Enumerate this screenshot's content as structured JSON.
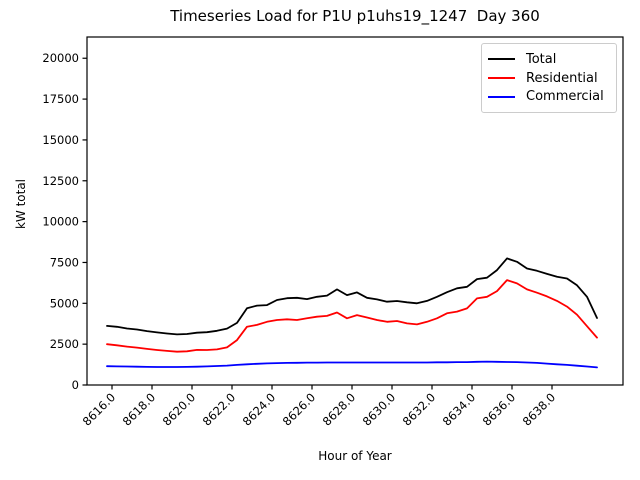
{
  "chart_data": {
    "type": "line",
    "title": "Timeseries Load for P1U p1uhs19_1247  Day 360",
    "xlabel": "Hour of Year",
    "ylabel": "kW total",
    "xlim": [
      8614.75,
      8641.55
    ],
    "ylim": [
      0,
      21300
    ],
    "grid": false,
    "background": "#ffffff",
    "xticks": [
      8616,
      8618,
      8620,
      8622,
      8624,
      8626,
      8628,
      8630,
      8632,
      8634,
      8636,
      8638
    ],
    "xtick_labels": [
      "8616.0",
      "8618.0",
      "8620.0",
      "8622.0",
      "8624.0",
      "8626.0",
      "8628.0",
      "8630.0",
      "8632.0",
      "8634.0",
      "8636.0",
      "8638.0"
    ],
    "yticks": [
      0,
      2500,
      5000,
      7500,
      10000,
      12500,
      15000,
      17500,
      20000
    ],
    "ytick_labels": [
      "0",
      "2500",
      "5000",
      "7500",
      "10000",
      "12500",
      "15000",
      "17500",
      "20000"
    ],
    "legend": {
      "position": "upper right"
    },
    "x": [
      8615.75,
      8616.25,
      8616.75,
      8617.25,
      8617.75,
      8618.25,
      8618.75,
      8619.25,
      8619.75,
      8620.25,
      8620.75,
      8621.25,
      8621.75,
      8622.25,
      8622.75,
      8623.25,
      8623.75,
      8624.25,
      8624.75,
      8625.25,
      8625.75,
      8626.25,
      8626.75,
      8627.25,
      8627.75,
      8628.25,
      8628.75,
      8629.25,
      8629.75,
      8630.25,
      8630.75,
      8631.25,
      8631.75,
      8632.25,
      8632.75,
      8633.25,
      8633.75,
      8634.25,
      8634.75,
      8635.25,
      8635.75,
      8636.25,
      8636.75,
      8637.25,
      8637.75,
      8638.25,
      8638.75,
      8639.25,
      8639.75,
      8640.25
    ],
    "series": [
      {
        "name": "Total",
        "color": "#000000",
        "values": [
          3620,
          3560,
          3460,
          3400,
          3300,
          3220,
          3150,
          3100,
          3120,
          3200,
          3230,
          3320,
          3450,
          3800,
          4700,
          4860,
          4890,
          5200,
          5310,
          5340,
          5260,
          5400,
          5470,
          5850,
          5500,
          5670,
          5340,
          5240,
          5100,
          5140,
          5060,
          5000,
          5150,
          5400,
          5680,
          5920,
          6010,
          6480,
          6570,
          7030,
          7750,
          7540,
          7130,
          6990,
          6800,
          6625,
          6520,
          6100,
          5400,
          4100
        ]
      },
      {
        "name": "Residential",
        "color": "#ff0000",
        "values": [
          2500,
          2430,
          2350,
          2290,
          2210,
          2140,
          2090,
          2040,
          2060,
          2150,
          2140,
          2180,
          2300,
          2750,
          3570,
          3680,
          3870,
          3980,
          4020,
          3980,
          4080,
          4180,
          4230,
          4440,
          4080,
          4280,
          4130,
          3980,
          3870,
          3920,
          3770,
          3710,
          3870,
          4080,
          4390,
          4490,
          4690,
          5300,
          5400,
          5750,
          6420,
          6220,
          5850,
          5650,
          5420,
          5150,
          4800,
          4300,
          3600,
          2900
        ]
      },
      {
        "name": "Commercial",
        "color": "#0000ff",
        "values": [
          1150,
          1140,
          1130,
          1120,
          1110,
          1100,
          1100,
          1100,
          1110,
          1120,
          1140,
          1160,
          1190,
          1230,
          1270,
          1300,
          1320,
          1340,
          1350,
          1360,
          1370,
          1370,
          1380,
          1380,
          1380,
          1380,
          1380,
          1380,
          1380,
          1380,
          1380,
          1380,
          1380,
          1390,
          1390,
          1400,
          1400,
          1420,
          1430,
          1420,
          1410,
          1400,
          1380,
          1350,
          1310,
          1270,
          1230,
          1180,
          1130,
          1080
        ]
      }
    ]
  }
}
